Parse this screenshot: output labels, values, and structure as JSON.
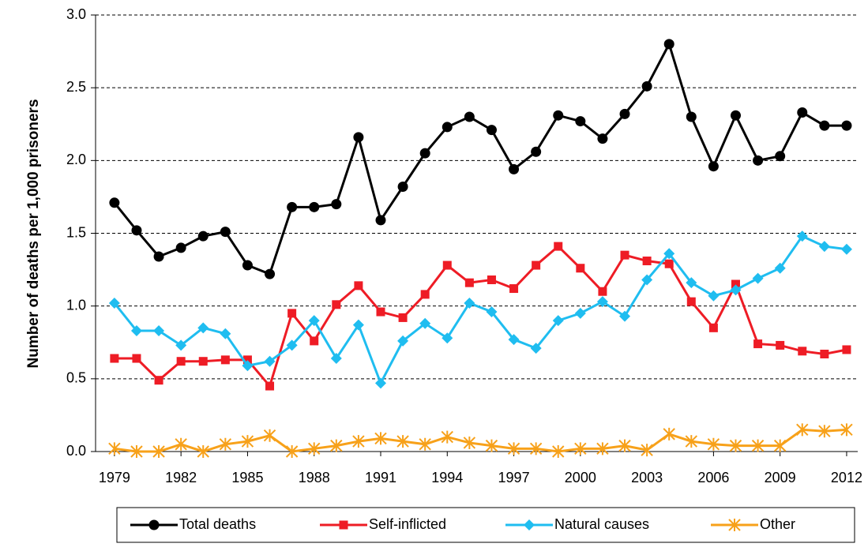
{
  "chart_data": {
    "type": "line",
    "y_label": "Number of deaths per 1,000 prisoners",
    "x": [
      1979,
      1980,
      1981,
      1982,
      1983,
      1984,
      1985,
      1986,
      1987,
      1988,
      1989,
      1990,
      1991,
      1992,
      1993,
      1994,
      1995,
      1996,
      1997,
      1998,
      1999,
      2000,
      2001,
      2002,
      2003,
      2004,
      2005,
      2006,
      2007,
      2008,
      2009,
      2010,
      2011,
      2012
    ],
    "xlim": [
      1978.15,
      2012.5
    ],
    "xticks": [
      1979,
      1982,
      1985,
      1988,
      1991,
      1994,
      1997,
      2000,
      2003,
      2006,
      2009,
      2012
    ],
    "ylim": [
      0,
      3
    ],
    "yticks": [
      {
        "value": 0,
        "label": "0.0"
      },
      0.5,
      {
        "value": 1,
        "label": "1.0"
      },
      1.5,
      {
        "value": 2,
        "label": "2.0"
      },
      2.5,
      {
        "value": 3,
        "label": "3.0"
      }
    ],
    "grid": true,
    "legend": "bottom",
    "series": [
      {
        "name": "Total deaths",
        "color": "#000000",
        "marker": "circle",
        "values": [
          1.71,
          1.52,
          1.34,
          1.4,
          1.48,
          1.51,
          1.28,
          1.22,
          1.68,
          1.68,
          1.7,
          2.16,
          1.59,
          1.82,
          2.05,
          2.23,
          2.3,
          2.21,
          1.94,
          2.06,
          2.31,
          2.27,
          2.15,
          2.32,
          2.51,
          2.8,
          2.3,
          1.96,
          2.31,
          2.0,
          2.03,
          2.33,
          2.24,
          2.24
        ]
      },
      {
        "name": "Self-inflicted",
        "color": "#ee1c25",
        "marker": "square",
        "values": [
          0.64,
          0.64,
          0.49,
          0.62,
          0.62,
          0.63,
          0.63,
          0.45,
          0.95,
          0.76,
          1.01,
          1.14,
          0.96,
          0.92,
          1.08,
          1.28,
          1.16,
          1.18,
          1.12,
          1.28,
          1.41,
          1.26,
          1.1,
          1.35,
          1.31,
          1.29,
          1.03,
          0.85,
          1.15,
          0.74,
          0.73,
          0.69,
          0.67,
          0.7
        ]
      },
      {
        "name": "Natural causes",
        "color": "#1fbdf0",
        "marker": "diamond",
        "values": [
          1.02,
          0.83,
          0.83,
          0.73,
          0.85,
          0.81,
          0.59,
          0.62,
          0.73,
          0.9,
          0.64,
          0.87,
          0.47,
          0.76,
          0.88,
          0.78,
          1.02,
          0.96,
          0.77,
          0.71,
          0.9,
          0.95,
          1.03,
          0.93,
          1.18,
          1.36,
          1.16,
          1.07,
          1.11,
          1.19,
          1.26,
          1.48,
          1.41,
          1.39
        ]
      },
      {
        "name": "Other",
        "color": "#f7a11a",
        "marker": "star",
        "values": [
          0.02,
          0,
          0,
          0.05,
          0,
          0.05,
          0.07,
          0.11,
          0,
          0.02,
          0.04,
          0.07,
          0.09,
          0.07,
          0.05,
          0.1,
          0.06,
          0.04,
          0.02,
          0.02,
          0,
          0.02,
          0.02,
          0.04,
          0.01,
          0.12,
          0.07,
          0.05,
          0.04,
          0.04,
          0.04,
          0.15,
          0.14,
          0.15
        ]
      }
    ]
  }
}
